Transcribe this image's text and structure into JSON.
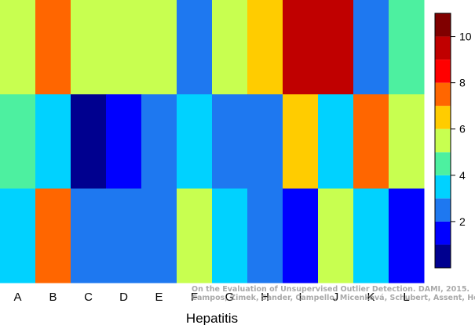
{
  "chart_data": {
    "type": "heatmap",
    "title": "",
    "xlabel": "Hepatitis",
    "ylabel": "",
    "columns": [
      "A",
      "B",
      "C",
      "D",
      "E",
      "F",
      "G",
      "H",
      "I",
      "J",
      "K",
      "L"
    ],
    "rows": 3,
    "values": [
      [
        6,
        8,
        6,
        6,
        6,
        3,
        6,
        7,
        10,
        10,
        3,
        5
      ],
      [
        5,
        4,
        1,
        2,
        3,
        4,
        3,
        3,
        7,
        4,
        8,
        6
      ],
      [
        4,
        8,
        3,
        3,
        3,
        6,
        4,
        3,
        2,
        6,
        4,
        2
      ]
    ],
    "colorbar": {
      "range": [
        0,
        11
      ],
      "levels": [
        {
          "from": 0,
          "to": 1,
          "color": "#00008f"
        },
        {
          "from": 1,
          "to": 2,
          "color": "#0000ff"
        },
        {
          "from": 2,
          "to": 3,
          "color": "#1e78f0"
        },
        {
          "from": 3,
          "to": 4,
          "color": "#00d2ff"
        },
        {
          "from": 4,
          "to": 5,
          "color": "#4df0a0"
        },
        {
          "from": 5,
          "to": 6,
          "color": "#c8ff50"
        },
        {
          "from": 6,
          "to": 7,
          "color": "#ffcc00"
        },
        {
          "from": 7,
          "to": 8,
          "color": "#ff6600"
        },
        {
          "from": 8,
          "to": 9,
          "color": "#ff0000"
        },
        {
          "from": 9,
          "to": 10,
          "color": "#c00000"
        },
        {
          "from": 10,
          "to": 11,
          "color": "#800000"
        }
      ],
      "ticks": [
        2,
        4,
        6,
        8,
        10
      ],
      "tick_labels": [
        "2",
        "4",
        "6",
        "8",
        "10"
      ]
    },
    "grid": false,
    "legend": "colorbar-right"
  },
  "watermark": {
    "line1": "On the Evaluation of Unsupervised Outlier Detection. DAMI, 2015.",
    "line2": "Campos, Zimek, Sander, Campello, Micenková, Schubert, Assent, Houle"
  }
}
